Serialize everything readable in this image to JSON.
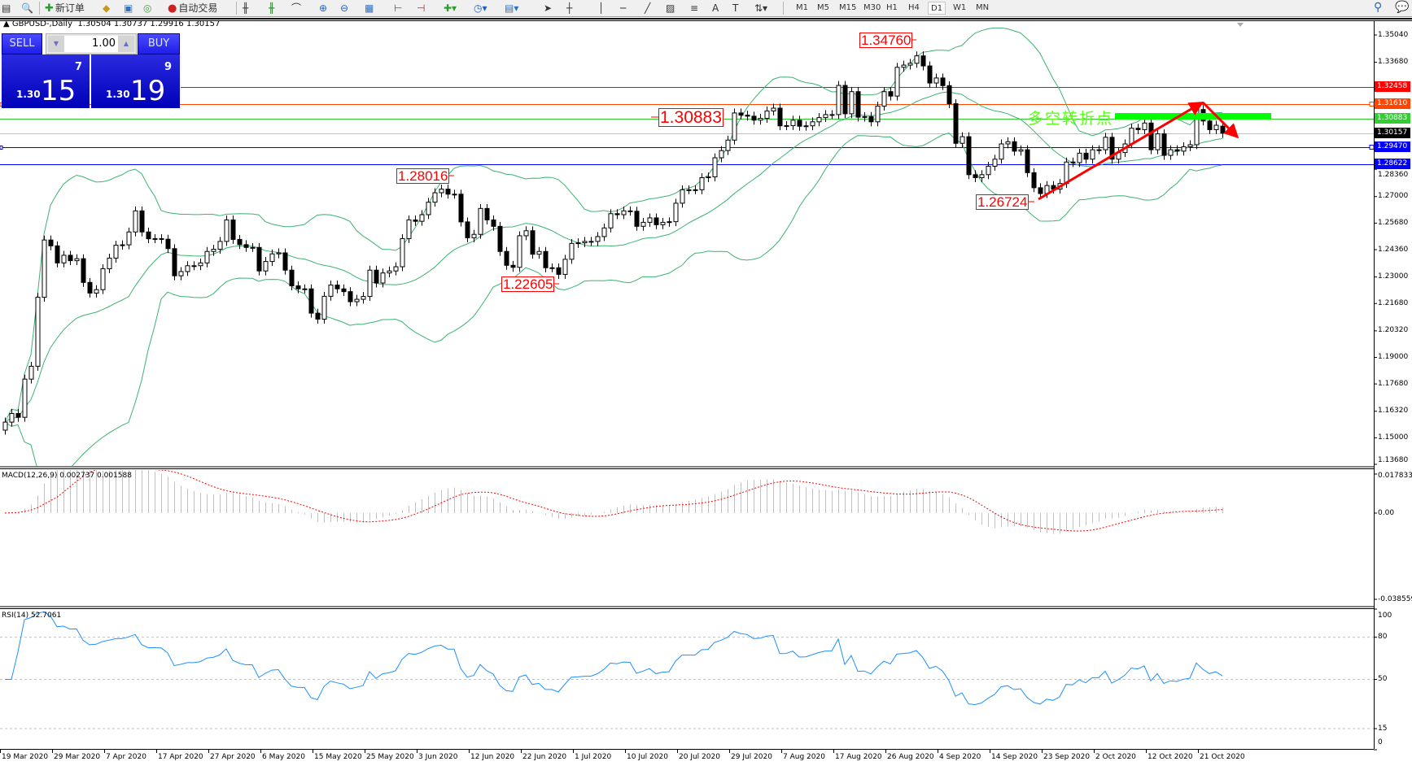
{
  "toolbar": {
    "new_order": "新订单",
    "auto_trading": "自动交易",
    "timeframes": [
      "M1",
      "M5",
      "M15",
      "M30",
      "H1",
      "H4",
      "D1",
      "W1",
      "MN"
    ],
    "active_timeframe": "D1"
  },
  "chart": {
    "symbol_info": "GBPUSD-,Daily",
    "ohlc": "1.30504 1.30737 1.29916 1.30157"
  },
  "trade_panel": {
    "sell_label": "SELL",
    "buy_label": "BUY",
    "lot": "1.00",
    "sell_prefix": "1.30",
    "sell_big": "15",
    "sell_frac": "7",
    "buy_prefix": "1.30",
    "buy_big": "19",
    "buy_frac": "9"
  },
  "price_axis": [
    "1.35040",
    "1.33680",
    "1.28360",
    "1.27000",
    "1.25680",
    "1.24360",
    "1.23000",
    "1.21680",
    "1.20320",
    "1.19000",
    "1.17680",
    "1.16320",
    "1.15000",
    "1.13680"
  ],
  "hlines": [
    {
      "price": "1.32458",
      "color": "#ff0000"
    },
    {
      "price": "1.31610",
      "color": "#ff4500"
    },
    {
      "price": "1.30883",
      "color": "#32cd32"
    },
    {
      "price": "1.30157",
      "color": "#000000"
    },
    {
      "price": "1.29470",
      "color": "#0000ff"
    },
    {
      "price": "1.28622",
      "color": "#0000ff"
    }
  ],
  "annotations": {
    "labels": [
      "1.34760",
      "1.30883",
      "1.28016",
      "1.22605",
      "1.26724"
    ],
    "turning_point_text": "多空转折点",
    "accent_red": "#ff0000",
    "accent_green": "#00ff00"
  },
  "macd": {
    "title": "MACD(12,26,9) 0.002737 0.001588",
    "axis": [
      "0.017833",
      "0.00",
      "-0.038559"
    ]
  },
  "rsi": {
    "title": "RSI(14) 52.7061",
    "axis": [
      "100",
      "80",
      "50",
      "15",
      "0"
    ],
    "levels": [
      80,
      50,
      15
    ]
  },
  "date_axis": [
    "19 Mar 2020",
    "29 Mar 2020",
    "7 Apr 2020",
    "17 Apr 2020",
    "27 Apr 2020",
    "6 May 2020",
    "15 May 2020",
    "25 May 2020",
    "3 Jun 2020",
    "12 Jun 2020",
    "22 Jun 2020",
    "1 Jul 2020",
    "10 Jul 2020",
    "20 Jul 2020",
    "29 Jul 2020",
    "7 Aug 2020",
    "17 Aug 2020",
    "26 Aug 2020",
    "4 Sep 2020",
    "14 Sep 2020",
    "23 Sep 2020",
    "2 Oct 2020",
    "12 Oct 2020",
    "21 Oct 2020"
  ],
  "chart_data": {
    "type": "candlestick",
    "symbol": "GBPUSD-",
    "timeframe": "Daily",
    "indicators": [
      "Bollinger Bands",
      "MACD(12,26,9)",
      "RSI(14)"
    ],
    "ylim": [
      1.1368,
      1.3504
    ],
    "close": [
      1.1578,
      1.1621,
      1.1602,
      1.1792,
      1.1856,
      1.2199,
      1.2484,
      1.2455,
      1.237,
      1.2408,
      1.2381,
      1.2391,
      1.2273,
      1.222,
      1.2237,
      1.2341,
      1.2394,
      1.2458,
      1.246,
      1.2524,
      1.2629,
      1.2524,
      1.249,
      1.2491,
      1.2488,
      1.2441,
      1.2306,
      1.2327,
      1.2356,
      1.2356,
      1.237,
      1.2427,
      1.2438,
      1.2477,
      1.2584,
      1.2487,
      1.2461,
      1.2447,
      1.2447,
      1.233,
      1.2377,
      1.2415,
      1.242,
      1.2334,
      1.2256,
      1.2241,
      1.2241,
      1.212,
      1.209,
      1.2204,
      1.226,
      1.2241,
      1.2227,
      1.2177,
      1.2189,
      1.2203,
      1.2334,
      1.227,
      1.232,
      1.233,
      1.2351,
      1.2491,
      1.2584,
      1.2577,
      1.261,
      1.2672,
      1.2719,
      1.2737,
      1.2712,
      1.2712,
      1.2574,
      1.2495,
      1.2512,
      1.2641,
      1.2584,
      1.2552,
      1.2427,
      1.2358,
      1.2348,
      1.2505,
      1.253,
      1.2413,
      1.2427,
      1.2346,
      1.2346,
      1.2313,
      1.2388,
      1.2467,
      1.247,
      1.2477,
      1.2477,
      1.2501,
      1.2544,
      1.2615,
      1.261,
      1.2629,
      1.2627,
      1.2552,
      1.2572,
      1.2594,
      1.256,
      1.2572,
      1.2575,
      1.2667,
      1.2734,
      1.2734,
      1.2734,
      1.2794,
      1.2798,
      1.2893,
      1.2929,
      1.2981,
      1.3116,
      1.3105,
      1.31,
      1.308,
      1.3089,
      1.3126,
      1.314,
      1.3052,
      1.3053,
      1.308,
      1.305,
      1.3052,
      1.3072,
      1.3093,
      1.3108,
      1.3108,
      1.3253,
      1.3112,
      1.3222,
      1.3095,
      1.3098,
      1.3072,
      1.315,
      1.3222,
      1.32,
      1.3343,
      1.3354,
      1.3363,
      1.34,
      1.335,
      1.3265,
      1.329,
      1.3252,
      1.3162,
      1.2965,
      1.2998,
      1.2809,
      1.2794,
      1.2809,
      1.2851,
      1.2886,
      1.2962,
      1.2973,
      1.2926,
      1.2933,
      1.2819,
      1.2744,
      1.2715,
      1.2755,
      1.2737,
      1.2765,
      1.2872,
      1.2869,
      1.2916,
      1.2886,
      1.2933,
      1.2933,
      1.2995,
      1.2886,
      1.2919,
      1.2962,
      1.304,
      1.3033,
      1.3066,
      1.2933,
      1.3012,
      1.2905,
      1.2933,
      1.2926,
      1.2948,
      1.2958,
      1.3133,
      1.3076,
      1.3033,
      1.3055,
      1.30157
    ],
    "last_bar": {
      "open": 1.30504,
      "high": 1.30737,
      "low": 1.29916,
      "close": 1.30157
    },
    "marked_high": 1.3476,
    "marked_lows": [
      1.22605,
      1.26724
    ]
  }
}
